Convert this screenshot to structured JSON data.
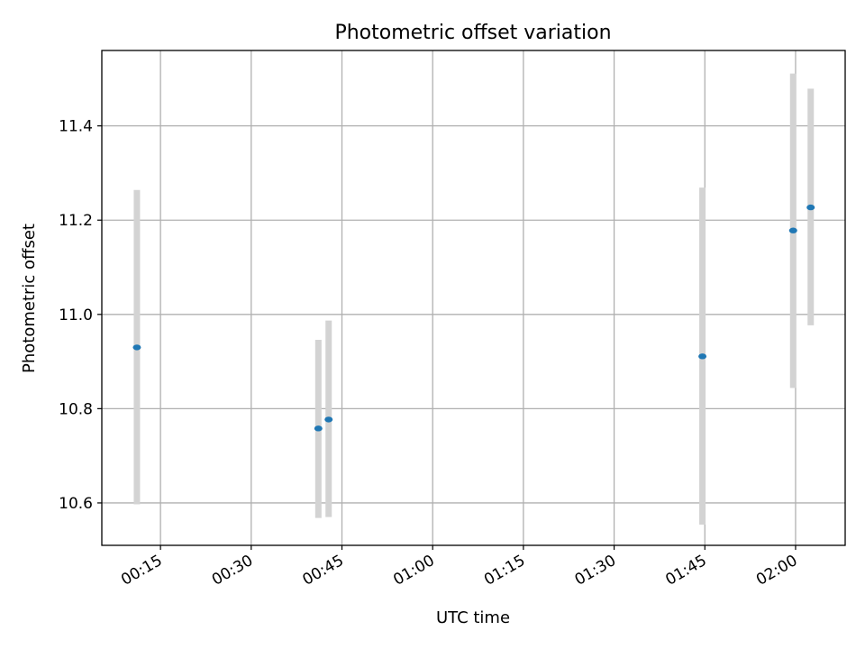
{
  "chart_data": {
    "type": "scatter",
    "title": "Photometric offset variation",
    "xlabel": "UTC time",
    "ylabel": "Photometric offset",
    "x_tick_labels": [
      "00:15",
      "00:30",
      "00:45",
      "01:00",
      "01:15",
      "01:30",
      "01:45",
      "02:00"
    ],
    "x_ticks_minutes": [
      15,
      30,
      45,
      60,
      75,
      90,
      105,
      120
    ],
    "xlim_minutes": [
      5.3,
      128.2
    ],
    "y_ticks": [
      10.6,
      10.8,
      11.0,
      11.2,
      11.4
    ],
    "y_tick_labels": [
      "10.6",
      "10.8",
      "11.0",
      "11.2",
      "11.4"
    ],
    "ylim": [
      10.51,
      11.56
    ],
    "grid": true,
    "series": [
      {
        "x_labels": [
          "00:11",
          "00:41",
          "00:43",
          "01:45",
          "01:59",
          "02:02"
        ],
        "x_minutes": [
          11.1,
          41.1,
          42.8,
          104.6,
          119.6,
          122.5
        ],
        "y": [
          10.93,
          10.758,
          10.777,
          10.911,
          11.178,
          11.227
        ],
        "y_low": [
          10.597,
          10.568,
          10.57,
          10.554,
          10.844,
          10.977
        ],
        "y_high": [
          11.264,
          10.946,
          10.987,
          11.269,
          11.511,
          11.479
        ],
        "marker_color": "#1f77b4",
        "errorbar_color": "#d3d3d3"
      }
    ]
  }
}
